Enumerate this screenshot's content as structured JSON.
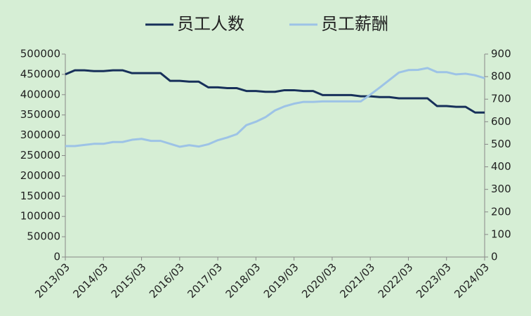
{
  "chart_data": {
    "type": "line",
    "categories": [
      "2013/03",
      null,
      null,
      null,
      "2014/03",
      null,
      null,
      null,
      "2015/03",
      null,
      null,
      null,
      "2016/03",
      null,
      null,
      null,
      "2017/03",
      null,
      null,
      null,
      "2018/03",
      null,
      null,
      null,
      "2019/03",
      null,
      null,
      null,
      "2020/03",
      null,
      null,
      null,
      "2021/03",
      null,
      null,
      null,
      "2022/03",
      null,
      null,
      null,
      "2023/03",
      null,
      null,
      null,
      "2024/03"
    ],
    "series": [
      {
        "name": "员工人数",
        "color": "#17305a",
        "values": [
          450000,
          460000,
          460000,
          458000,
          458000,
          460000,
          460000,
          453000,
          453000,
          453000,
          453000,
          434000,
          434000,
          432000,
          432000,
          418000,
          418000,
          416000,
          416000,
          409000,
          409000,
          407000,
          407000,
          411000,
          411000,
          409000,
          409000,
          399000,
          399000,
          399000,
          399000,
          396000,
          396000,
          394000,
          394000,
          391000,
          391000,
          391000,
          391000,
          372000,
          372000,
          370000,
          370000,
          356000,
          356000
        ]
      },
      {
        "name": "员工薪酬",
        "color": "#9dc3e6",
        "axis": "y2",
        "values": [
          492,
          492,
          497,
          502,
          502,
          510,
          510,
          520,
          524,
          515,
          515,
          502,
          489,
          496,
          490,
          500,
          518,
          530,
          545,
          585,
          600,
          620,
          650,
          668,
          680,
          688,
          688,
          690,
          690,
          690,
          690,
          690,
          720,
          752,
          785,
          818,
          829,
          830,
          838,
          820,
          820,
          810,
          813,
          806,
          793
        ]
      }
    ],
    "ylim": [
      0,
      500000
    ],
    "yticks": [
      0,
      50000,
      100000,
      150000,
      200000,
      250000,
      300000,
      350000,
      400000,
      450000,
      500000
    ],
    "y2lim": [
      0,
      900
    ],
    "y2ticks": [
      0,
      100,
      200,
      300,
      400,
      500,
      600,
      700,
      800,
      900
    ],
    "legend": "top"
  }
}
